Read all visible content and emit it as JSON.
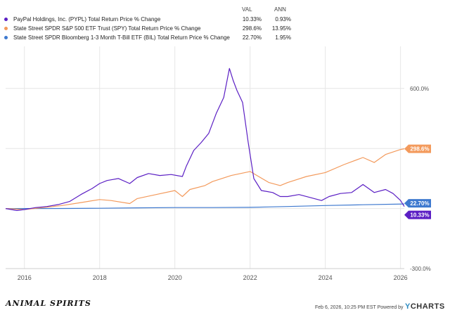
{
  "legend": {
    "val_header": "VAL",
    "ann_header": "ANN"
  },
  "chart_data": {
    "type": "line",
    "title": "",
    "xlabel": "",
    "ylabel": "",
    "x_ticks": [
      "2016",
      "2018",
      "2020",
      "2022",
      "2024",
      "2026"
    ],
    "x_tick_values": [
      2016,
      2018,
      2020,
      2022,
      2024,
      2026
    ],
    "y_ticks": [
      "600.0%",
      "-300.0%"
    ],
    "y_tick_values": [
      600,
      -300
    ],
    "xlim": [
      2015.5,
      2026.1
    ],
    "ylim": [
      -300,
      810
    ],
    "grid": true,
    "legend_position": "top-left",
    "series": [
      {
        "name": "PayPal Holdings, Inc. (PYPL) Total Return Price % Change",
        "value_label": "10.33%",
        "ann_label": "0.93%",
        "end_label": "10.33%",
        "color": "#5b1fc4",
        "x": [
          2015.5,
          2015.8,
          2016.0,
          2016.3,
          2016.6,
          2016.9,
          2017.2,
          2017.5,
          2017.8,
          2018.0,
          2018.2,
          2018.5,
          2018.8,
          2019.0,
          2019.3,
          2019.6,
          2019.9,
          2020.2,
          2020.3,
          2020.5,
          2020.7,
          2020.9,
          2021.1,
          2021.3,
          2021.45,
          2021.55,
          2021.65,
          2021.8,
          2021.95,
          2022.1,
          2022.3,
          2022.6,
          2022.8,
          2023.0,
          2023.3,
          2023.6,
          2023.9,
          2024.1,
          2024.4,
          2024.7,
          2025.0,
          2025.3,
          2025.6,
          2025.8,
          2026.0,
          2026.1
        ],
        "y": [
          0,
          -10,
          -5,
          5,
          10,
          20,
          35,
          70,
          100,
          125,
          140,
          150,
          125,
          155,
          175,
          165,
          170,
          160,
          210,
          290,
          330,
          375,
          475,
          555,
          700,
          640,
          590,
          530,
          330,
          150,
          90,
          80,
          60,
          60,
          70,
          55,
          40,
          60,
          75,
          80,
          120,
          80,
          95,
          75,
          40,
          10.33
        ]
      },
      {
        "name": "State Street SPDR S&P 500 ETF Trust (SPY) Total Return Price % Change",
        "value_label": "298.6%",
        "ann_label": "13.95%",
        "end_label": "298.6%",
        "color": "#f39a5c",
        "x": [
          2015.5,
          2016.0,
          2016.5,
          2017.0,
          2017.5,
          2018.0,
          2018.3,
          2018.8,
          2019.0,
          2019.5,
          2020.0,
          2020.2,
          2020.4,
          2020.8,
          2021.0,
          2021.5,
          2022.0,
          2022.5,
          2022.8,
          2023.0,
          2023.5,
          2024.0,
          2024.5,
          2025.0,
          2025.3,
          2025.6,
          2026.0,
          2026.1
        ],
        "y": [
          0,
          -5,
          5,
          15,
          30,
          45,
          40,
          25,
          50,
          70,
          90,
          60,
          95,
          115,
          135,
          165,
          185,
          130,
          115,
          130,
          160,
          180,
          220,
          255,
          230,
          270,
          295,
          298.6
        ]
      },
      {
        "name": "State Street SPDR Bloomberg 1-3 Month T-Bill ETF (BIL) Total Return Price % Change",
        "value_label": "22.70%",
        "ann_label": "1.95%",
        "end_label": "22.70%",
        "color": "#3e79cf",
        "x": [
          2015.5,
          2017.0,
          2018.0,
          2019.0,
          2020.0,
          2021.0,
          2022.0,
          2023.0,
          2024.0,
          2025.0,
          2026.1
        ],
        "y": [
          0,
          0.5,
          1.5,
          3.5,
          5,
          5,
          6,
          10,
          15,
          19,
          22.7
        ]
      }
    ]
  },
  "footer": {
    "logo": "ANIMAL SPIRITS",
    "note": "Feb 6, 2026, 10:25 PM EST Powered by",
    "brand_y": "Y",
    "brand_rest": "CHARTS"
  }
}
